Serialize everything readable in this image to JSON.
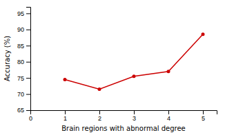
{
  "chart_data": {
    "type": "line",
    "x": [
      1,
      2,
      3,
      4,
      5
    ],
    "values": [
      74.5,
      71.5,
      75.5,
      77.0,
      88.5
    ],
    "color": "#cc0000",
    "marker": "circle",
    "xlabel": "Brain regions with abnormal degree",
    "ylabel": "Accuracy (%)",
    "xlim": [
      0,
      5.4
    ],
    "ylim": [
      65,
      97
    ],
    "xticks": [
      0,
      1,
      2,
      3,
      4,
      5
    ],
    "yticks": [
      65,
      70,
      75,
      80,
      85,
      90,
      95
    ]
  }
}
